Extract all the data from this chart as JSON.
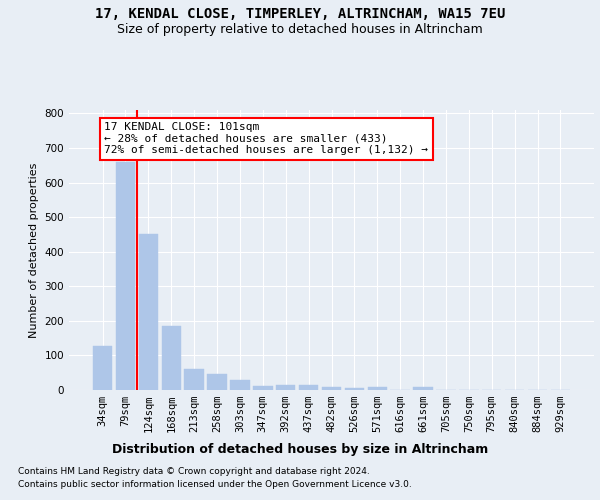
{
  "title1": "17, KENDAL CLOSE, TIMPERLEY, ALTRINCHAM, WA15 7EU",
  "title2": "Size of property relative to detached houses in Altrincham",
  "xlabel": "Distribution of detached houses by size in Altrincham",
  "ylabel": "Number of detached properties",
  "footer1": "Contains HM Land Registry data © Crown copyright and database right 2024.",
  "footer2": "Contains public sector information licensed under the Open Government Licence v3.0.",
  "bin_labels": [
    "34sqm",
    "79sqm",
    "124sqm",
    "168sqm",
    "213sqm",
    "258sqm",
    "303sqm",
    "347sqm",
    "392sqm",
    "437sqm",
    "482sqm",
    "526sqm",
    "571sqm",
    "616sqm",
    "661sqm",
    "705sqm",
    "750sqm",
    "795sqm",
    "840sqm",
    "884sqm",
    "929sqm"
  ],
  "bin_values": [
    128,
    660,
    450,
    185,
    62,
    47,
    28,
    12,
    15,
    15,
    8,
    5,
    8,
    0,
    8,
    0,
    0,
    0,
    0,
    0,
    0
  ],
  "bar_color": "#aec6e8",
  "bar_edge_color": "#aec6e8",
  "bar_width": 0.85,
  "vline_x": 1.5,
  "vline_color": "red",
  "annotation_line1": "17 KENDAL CLOSE: 101sqm",
  "annotation_line2": "← 28% of detached houses are smaller (433)",
  "annotation_line3": "72% of semi-detached houses are larger (1,132) →",
  "annotation_box_color": "white",
  "annotation_box_edgecolor": "red",
  "ylim": [
    0,
    810
  ],
  "yticks": [
    0,
    100,
    200,
    300,
    400,
    500,
    600,
    700,
    800
  ],
  "bg_color": "#e8eef5",
  "plot_bg_color": "#e8eef5",
  "grid_color": "white",
  "title1_fontsize": 10,
  "title2_fontsize": 9,
  "xlabel_fontsize": 9,
  "ylabel_fontsize": 8,
  "tick_fontsize": 7.5,
  "annotation_fontsize": 8,
  "footer_fontsize": 6.5
}
